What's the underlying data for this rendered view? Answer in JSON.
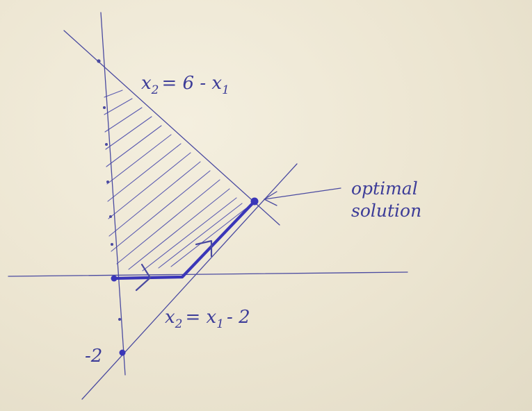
{
  "labels": {
    "line1_prefix": "x",
    "line1_sub": "2",
    "line1_rhs": "= 6 - x",
    "line1_rhs_sub": "1",
    "line2_prefix": "x",
    "line2_sub": "2",
    "line2_rhs": "= x",
    "line2_rhs_sub": "1",
    "line2_tail": "- 2",
    "tick_minus_two": "-2",
    "note_line1": "optimal",
    "note_line2": "solution"
  },
  "colors": {
    "paper": "#efe9d7",
    "ink": "#4a4aa0",
    "path": "#3a36b8"
  }
}
